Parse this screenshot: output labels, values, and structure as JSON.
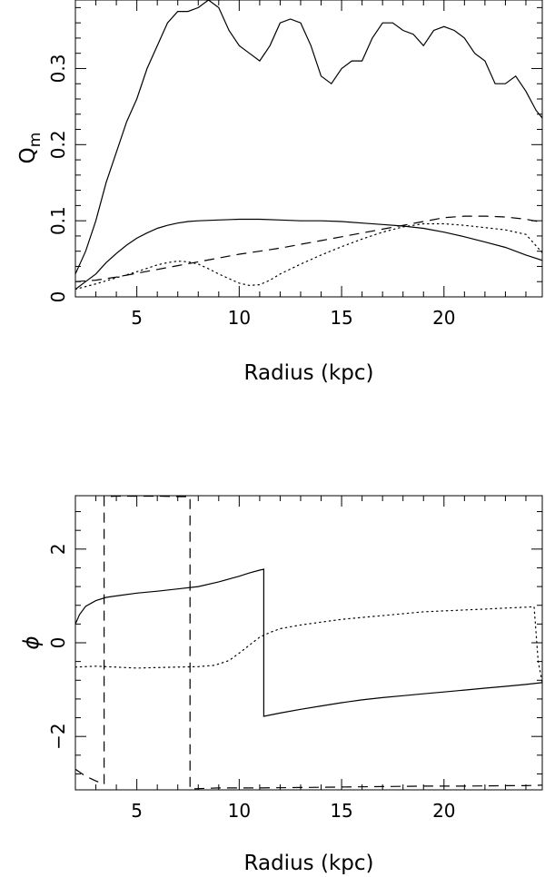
{
  "chart_data": [
    {
      "type": "line",
      "xlabel": "Radius (kpc)",
      "ylabel": "Q_m",
      "ylabel_main": "Q",
      "ylabel_sub": "m",
      "xlim": [
        2,
        24.8
      ],
      "ylim": [
        0,
        0.39
      ],
      "x_ticks": [
        5,
        10,
        15,
        20
      ],
      "y_ticks": [
        0,
        0.1,
        0.2,
        0.3
      ],
      "x_tick_labels": [
        "5",
        "10",
        "15",
        "20"
      ],
      "y_tick_labels": [
        "0",
        "0.1",
        "0.2",
        "0.3"
      ],
      "grid": false,
      "series": [
        {
          "style": "solid",
          "x": [
            2,
            2.5,
            3,
            3.5,
            4,
            4.5,
            5,
            5.5,
            6,
            6.5,
            7,
            7.5,
            8,
            8.5,
            9,
            9.5,
            10,
            10.5,
            11,
            11.5,
            12,
            12.5,
            13,
            13.5,
            14,
            14.5,
            15,
            15.5,
            16,
            16.5,
            17,
            17.5,
            18,
            18.5,
            19,
            19.5,
            20,
            20.5,
            21,
            21.5,
            22,
            22.5,
            23,
            23.5,
            24,
            24.5,
            24.8
          ],
          "y": [
            0.03,
            0.06,
            0.1,
            0.15,
            0.19,
            0.23,
            0.26,
            0.3,
            0.33,
            0.36,
            0.375,
            0.375,
            0.38,
            0.39,
            0.38,
            0.35,
            0.33,
            0.32,
            0.31,
            0.33,
            0.36,
            0.365,
            0.36,
            0.33,
            0.29,
            0.28,
            0.3,
            0.31,
            0.31,
            0.34,
            0.36,
            0.36,
            0.35,
            0.345,
            0.33,
            0.35,
            0.355,
            0.35,
            0.34,
            0.32,
            0.31,
            0.28,
            0.28,
            0.29,
            0.27,
            0.245,
            0.235
          ]
        },
        {
          "style": "solid",
          "x": [
            2,
            2.5,
            3,
            3.5,
            4,
            4.5,
            5,
            5.5,
            6,
            6.5,
            7,
            7.5,
            8,
            9,
            10,
            11,
            12,
            13,
            14,
            15,
            16,
            17,
            18,
            19,
            20,
            21,
            22,
            23,
            24,
            24.8
          ],
          "y": [
            0.01,
            0.02,
            0.03,
            0.045,
            0.057,
            0.068,
            0.077,
            0.084,
            0.09,
            0.094,
            0.097,
            0.099,
            0.1,
            0.101,
            0.102,
            0.102,
            0.101,
            0.1,
            0.1,
            0.099,
            0.097,
            0.095,
            0.093,
            0.09,
            0.085,
            0.079,
            0.072,
            0.065,
            0.055,
            0.048
          ]
        },
        {
          "style": "dashed",
          "x": [
            2,
            3,
            4,
            5,
            6,
            7,
            8,
            9,
            10,
            11,
            12,
            13,
            14,
            15,
            16,
            17,
            18,
            19,
            20,
            21,
            22,
            23,
            24,
            24.8
          ],
          "y": [
            0.02,
            0.022,
            0.026,
            0.031,
            0.036,
            0.041,
            0.046,
            0.051,
            0.056,
            0.06,
            0.064,
            0.069,
            0.074,
            0.079,
            0.084,
            0.089,
            0.094,
            0.099,
            0.104,
            0.106,
            0.106,
            0.105,
            0.102,
            0.098
          ]
        },
        {
          "style": "dotted",
          "x": [
            2,
            3,
            4,
            5,
            6,
            6.5,
            7,
            7.5,
            8,
            8.5,
            9,
            9.5,
            10,
            10.5,
            11,
            11.5,
            12,
            13,
            14,
            15,
            16,
            17,
            18,
            19,
            20,
            21,
            22,
            23,
            24,
            24.8
          ],
          "y": [
            0.01,
            0.017,
            0.025,
            0.033,
            0.042,
            0.045,
            0.047,
            0.046,
            0.043,
            0.037,
            0.03,
            0.024,
            0.018,
            0.015,
            0.016,
            0.022,
            0.03,
            0.043,
            0.055,
            0.066,
            0.076,
            0.085,
            0.092,
            0.096,
            0.096,
            0.094,
            0.091,
            0.088,
            0.082,
            0.058
          ]
        }
      ]
    },
    {
      "type": "line",
      "xlabel": "Radius (kpc)",
      "ylabel": "ϕ",
      "xlim": [
        2,
        24.8
      ],
      "ylim": [
        -3.14,
        3.14
      ],
      "x_ticks": [
        5,
        10,
        15,
        20
      ],
      "y_ticks": [
        -2,
        0,
        2
      ],
      "x_tick_labels": [
        "5",
        "10",
        "15",
        "20"
      ],
      "y_tick_labels": [
        "−2",
        "0",
        "2"
      ],
      "grid": false,
      "series": [
        {
          "style": "solid",
          "x": [
            2,
            2.2,
            2.5,
            3,
            3.5,
            4,
            5,
            6,
            7,
            8,
            9,
            10,
            10.5,
            11,
            11.2,
            11.2,
            12,
            13,
            14,
            15,
            16,
            17,
            18,
            19,
            20,
            21,
            22,
            23,
            24,
            24.8
          ],
          "y": [
            0.4,
            0.6,
            0.78,
            0.9,
            0.97,
            1.0,
            1.06,
            1.1,
            1.15,
            1.2,
            1.3,
            1.42,
            1.49,
            1.55,
            1.57,
            -1.57,
            -1.5,
            -1.42,
            -1.35,
            -1.28,
            -1.22,
            -1.17,
            -1.13,
            -1.09,
            -1.05,
            -1.01,
            -0.97,
            -0.93,
            -0.89,
            -0.85
          ]
        },
        {
          "style": "dotted",
          "x": [
            2,
            3,
            4,
            5,
            6,
            7,
            8,
            8.8,
            9.5,
            10,
            10.5,
            11,
            11.5,
            12,
            13,
            14,
            15,
            16,
            17,
            18,
            19,
            20,
            21,
            22,
            23,
            24,
            24.4,
            24.6,
            24.8
          ],
          "y": [
            -0.52,
            -0.5,
            -0.52,
            -0.54,
            -0.53,
            -0.52,
            -0.51,
            -0.48,
            -0.38,
            -0.22,
            -0.05,
            0.12,
            0.22,
            0.3,
            0.38,
            0.44,
            0.5,
            0.54,
            0.58,
            0.62,
            0.66,
            0.68,
            0.7,
            0.72,
            0.74,
            0.76,
            0.77,
            -0.4,
            -0.85
          ]
        },
        {
          "style": "dashed",
          "x": [
            2,
            2.5,
            3,
            3.4,
            3.4,
            4,
            5,
            6,
            7,
            7.6,
            7.6,
            9,
            11,
            13,
            15,
            17,
            19,
            21,
            23,
            24,
            24.8
          ],
          "y": [
            -2.7,
            -2.85,
            -2.95,
            -3.02,
            3.12,
            3.13,
            3.13,
            3.13,
            3.12,
            3.12,
            -3.12,
            -3.1,
            -3.1,
            -3.09,
            -3.08,
            -3.07,
            -3.06,
            -3.06,
            -3.05,
            -3.05,
            -3.04
          ]
        }
      ]
    }
  ]
}
